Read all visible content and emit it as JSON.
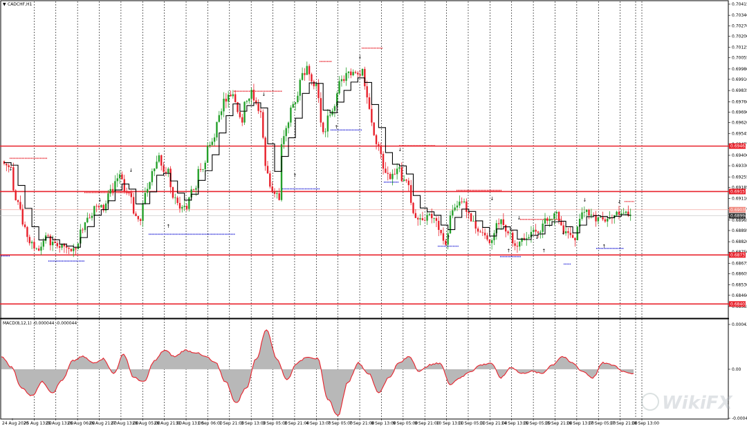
{
  "window": {
    "symbol_title": "CADCHF,H1",
    "menu_glyph": "▼"
  },
  "price_axis": {
    "ticks": [
      "0.70415",
      "0.70340",
      "0.70270",
      "0.70200",
      "0.70125",
      "0.70055",
      "0.69980",
      "0.69910",
      "0.69835",
      "0.69760",
      "0.69690",
      "0.69620",
      "0.69545",
      "0.69475",
      "0.69400",
      "0.69330",
      "0.69255",
      "0.69185",
      "0.69110",
      "0.69040",
      "0.68965",
      "0.68895",
      "0.68820",
      "0.68750",
      "0.68675",
      "0.68605",
      "0.68530",
      "0.68460",
      "0.68385"
    ],
    "level_labels": [
      {
        "text": "0.69462",
        "color": "#e8202a"
      },
      {
        "text": "0.69157",
        "color": "#e8202a"
      },
      {
        "text": "0.69035",
        "color": "#f08a80"
      },
      {
        "text": "0.68994",
        "color": "#333333"
      },
      {
        "text": "0.68731",
        "color": "#e8202a"
      },
      {
        "text": "0.68402",
        "color": "#e8202a"
      }
    ]
  },
  "time_axis": {
    "labels": [
      "24 Aug 2020",
      "25 Aug 13:00",
      "25 Aug 13:00",
      "26 Aug 06:00",
      "26 Aug 21:00",
      "27 Aug 13:00",
      "28 Aug 05:00",
      "28 Aug 21:00",
      "31 Aug 13:00",
      "1 Sep 06:00",
      "1 Sep 21:00",
      "3 Sep 13:00",
      "3 Sep 05:00",
      "3 Sep 21:00",
      "4 Sep 13:00",
      "7 Sep 05:00",
      "7 Sep 21:00",
      "8 Sep 13:00",
      "9 Sep 05:00",
      "9 Sep 21:00",
      "10 Sep 13:00",
      "11 Sep 05:00",
      "11 Sep 21:00",
      "14 Sep 13:00",
      "15 Sep 05:00",
      "15 Sep 21:00",
      "16 Sep 13:00",
      "17 Sep 05:00",
      "17 Sep 21:00",
      "18 Sep 13:00"
    ]
  },
  "indicator": {
    "title": "MACD(8,12,1) -0.000044 -0.000044",
    "axis_ticks": [
      "0.000424",
      "0.00",
      "-0.000464"
    ]
  },
  "colors": {
    "bull": "#24a02a",
    "bear": "#e8202a",
    "level": "#e8202a",
    "trail": "#000000",
    "dots_red": "#e8202a",
    "dots_blue": "#2828d8",
    "macd_fill": "#b8b8b8",
    "macd_line": "#e8202a"
  },
  "watermark": {
    "text": "WikiFX"
  },
  "chart_data": {
    "type": "candlestick",
    "title": "CADCHF,H1",
    "ylim": [
      0.68385,
      0.70415
    ],
    "horizontal_levels": [
      0.69462,
      0.69157,
      0.68731,
      0.68402
    ],
    "closes": [
      0.6932,
      0.6904,
      0.6881,
      0.6876,
      0.6886,
      0.6879,
      0.6878,
      0.6877,
      0.6895,
      0.6906,
      0.6903,
      0.6916,
      0.6924,
      0.6912,
      0.6896,
      0.6922,
      0.694,
      0.6931,
      0.6908,
      0.6904,
      0.6918,
      0.6935,
      0.6952,
      0.6978,
      0.6981,
      0.6962,
      0.6984,
      0.6969,
      0.6919,
      0.691,
      0.6962,
      0.698,
      0.7,
      0.6988,
      0.6956,
      0.6973,
      0.699,
      0.6996,
      0.6998,
      0.6962,
      0.6941,
      0.6924,
      0.6932,
      0.692,
      0.6897,
      0.69,
      0.6896,
      0.688,
      0.6905,
      0.6909,
      0.6896,
      0.6888,
      0.6883,
      0.6897,
      0.6888,
      0.6882,
      0.6885,
      0.6888,
      0.6896,
      0.6902,
      0.6889,
      0.6883,
      0.6902,
      0.69,
      0.6897,
      0.6898,
      0.6901,
      0.69
    ],
    "candle_annotations": "fractal arrows above/below selected candles",
    "macd": {
      "name": "MACD(8,12,1)",
      "value": -4.4e-05,
      "signal": -4.4e-05,
      "ylim": [
        -0.000464,
        0.000424
      ],
      "values": [
        0.00012,
        2e-05,
        -0.00018,
        -0.00025,
        -0.00012,
        -0.00022,
        -0.0001,
        8e-05,
        0.00012,
        6e-05,
        0.0001,
        -4e-05,
        0.00014,
        -8e-05,
        -0.00012,
        8e-05,
        0.00018,
        0.00012,
        0.00018,
        0.00016,
        0.00012,
        6e-05,
        -0.00012,
        -0.00032,
        -0.00018,
        0.0001,
        0.00038,
        0.0001,
        -0.0001,
        6e-05,
        0.00012,
        0.0001,
        -0.00028,
        -0.00044,
        -0.00012,
        6e-05,
        -4e-05,
        -0.00022,
        -8e-05,
        6e-05,
        0.00012,
        -2e-05,
        4e-05,
        6e-05,
        -0.00014,
        -8e-05,
        -2e-05,
        4e-05,
        6e-05,
        -8e-05,
        2e-05,
        -4e-05,
        -2e-05,
        -4e-05,
        4e-05,
        0.00012,
        6e-05,
        -2e-05,
        -8e-05,
        6e-05,
        4e-05,
        -2e-05,
        -4e-05
      ]
    }
  }
}
